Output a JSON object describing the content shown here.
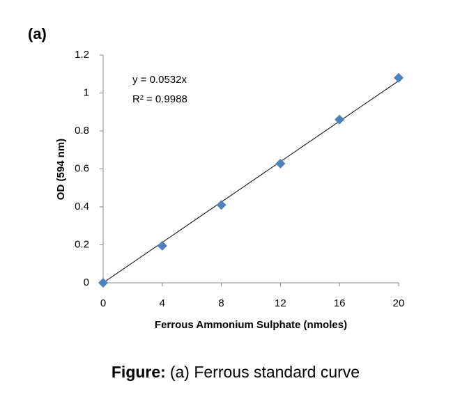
{
  "chart_data": {
    "type": "scatter",
    "panel_label": "(a)",
    "x_label": "Ferrous Ammonium Sulphate (nmoles)",
    "y_label": "OD (594 nm)",
    "x": [
      0,
      4,
      8,
      12,
      16,
      20
    ],
    "series": [
      {
        "color": "#4f81bd",
        "values": [
          0,
          0.195,
          0.41,
          0.628,
          0.86,
          1.08
        ]
      }
    ],
    "xlim": [
      0,
      20
    ],
    "xticks": [
      0,
      4,
      8,
      12,
      16,
      20
    ],
    "ylim": [
      0,
      1.2
    ],
    "yticks": [
      0,
      0.2,
      0.4,
      0.6,
      0.8,
      1,
      1.2
    ],
    "grid": false,
    "trendline": {
      "slope": 0.0532,
      "color": "#000000",
      "equation": "y = 0.0532x",
      "r_squared": "R² = 0.9988"
    },
    "caption_label": "Figure:",
    "caption": "(a) Ferrous standard curve"
  }
}
